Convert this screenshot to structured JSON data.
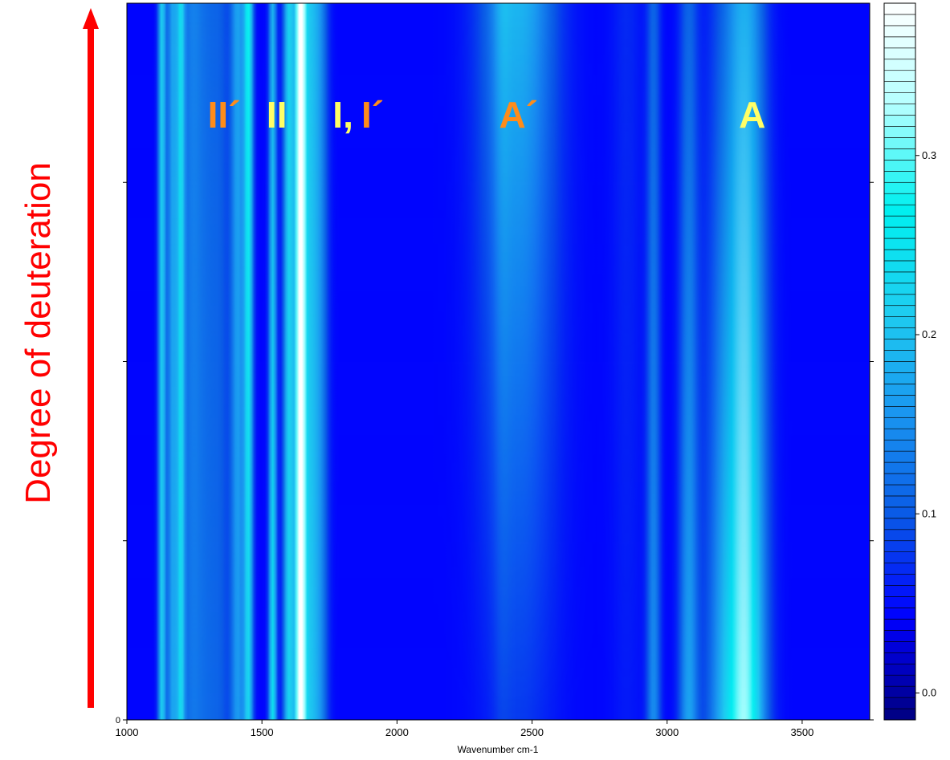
{
  "chart_data": {
    "type": "heatmap",
    "title": "",
    "xlabel": "Wavenumber cm-1",
    "ylabel": "Degree of deuteration",
    "xlim": [
      1000,
      3750
    ],
    "ylim": [
      0,
      1
    ],
    "x_ticks": [
      1000,
      1500,
      2000,
      2500,
      3000,
      3500
    ],
    "y_ticks_labeled": [
      "0"
    ],
    "y_tick_values": [
      0,
      0.25,
      0.5,
      0.75
    ],
    "colorbar": {
      "range": [
        -0.015,
        0.385
      ],
      "ticks": [
        0.0,
        0.1,
        0.2,
        0.3
      ],
      "tick_labels": [
        "0.0",
        "0.1",
        "0.2",
        "0.3"
      ],
      "colormap": [
        "#000080",
        "#0000ff",
        "#0a5ae6",
        "#1a96f0",
        "#1ecdf0",
        "#00f0f0",
        "#b4ffff",
        "#ffffff"
      ]
    },
    "bands": [
      {
        "center": 1130,
        "width": 10,
        "intensity_start": 0.2,
        "intensity_end": 0.2
      },
      {
        "center": 1170,
        "width": 14,
        "intensity_start": 0.15,
        "intensity_end": 0.15
      },
      {
        "center": 1200,
        "width": 10,
        "intensity_start": 0.18,
        "intensity_end": 0.18
      },
      {
        "center": 1240,
        "width": 30,
        "intensity_start": 0.1,
        "intensity_end": 0.11
      },
      {
        "center": 1300,
        "width": 30,
        "intensity_start": 0.08,
        "intensity_end": 0.08
      },
      {
        "center": 1350,
        "width": 25,
        "intensity_start": 0.07,
        "intensity_end": 0.07
      },
      {
        "center": 1410,
        "width": 18,
        "intensity_start": 0.14,
        "intensity_end": 0.15
      },
      {
        "center": 1450,
        "width": 12,
        "intensity_start": 0.2,
        "intensity_end": 0.25
      },
      {
        "center": 1540,
        "width": 10,
        "intensity_start": 0.23,
        "intensity_end": 0.17
      },
      {
        "center": 1600,
        "width": 14,
        "intensity_start": 0.2,
        "intensity_end": 0.2
      },
      {
        "center": 1642,
        "width": 12,
        "intensity_start": 0.38,
        "intensity_end": 0.38
      },
      {
        "center": 1675,
        "width": 30,
        "intensity_start": 0.18,
        "intensity_end": 0.18
      },
      {
        "center": 1720,
        "width": 20,
        "intensity_start": 0.08,
        "intensity_end": 0.08
      },
      {
        "center": 2450,
        "width": 95,
        "intensity_start": 0.06,
        "intensity_end": 0.17
      },
      {
        "center": 2390,
        "width": 22,
        "intensity_start": 0.04,
        "intensity_end": 0.06
      },
      {
        "center": 3290,
        "width": 50,
        "intensity_start": 0.29,
        "intensity_end": 0.16
      },
      {
        "center": 3080,
        "width": 25,
        "intensity_start": 0.15,
        "intensity_end": 0.09
      },
      {
        "center": 2950,
        "width": 18,
        "intensity_start": 0.13,
        "intensity_end": 0.09
      },
      {
        "center": 3200,
        "width": 45,
        "intensity_start": 0.12,
        "intensity_end": 0.06
      },
      {
        "center": 2850,
        "width": 40,
        "intensity_start": 0.04,
        "intensity_end": 0.05
      }
    ],
    "baseline_intensity": 0.045,
    "annotations": [
      {
        "text": "II´",
        "x": 1360,
        "y": 0.84,
        "color": "#ff8c1a"
      },
      {
        "text": "II",
        "x": 1555,
        "y": 0.84,
        "color": "#ffff66"
      },
      {
        "text": "I,",
        "x": 1800,
        "y": 0.84,
        "color": "#ffff66"
      },
      {
        "text": "I´",
        "x": 1910,
        "y": 0.84,
        "color": "#ff8c1a"
      },
      {
        "text": "A´",
        "x": 2450,
        "y": 0.84,
        "color": "#ff8c1a"
      },
      {
        "text": "A",
        "x": 3315,
        "y": 0.84,
        "color": "#ffff66"
      }
    ]
  }
}
